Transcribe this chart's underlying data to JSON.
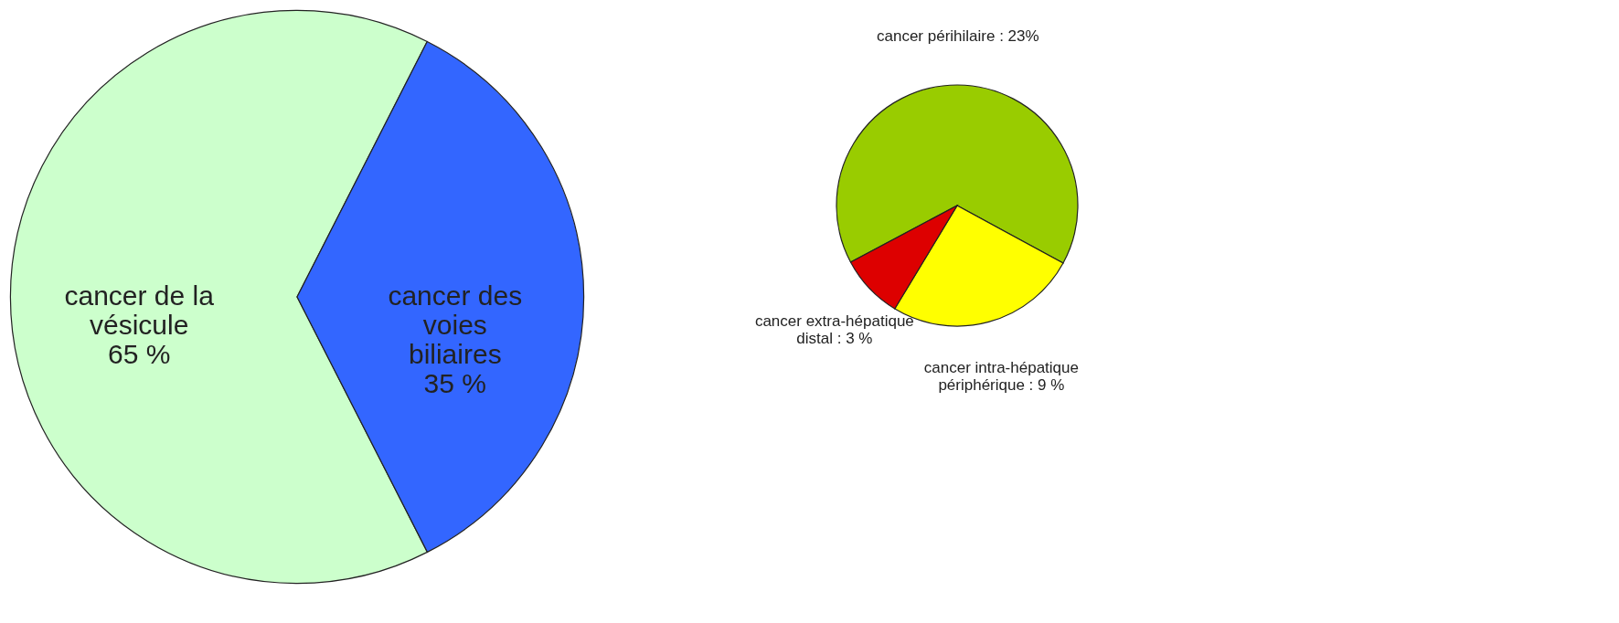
{
  "chart_data": [
    {
      "type": "pie",
      "categories": [
        "cancer de la vésicule",
        "cancer des voies biliaires"
      ],
      "values": [
        65,
        35
      ],
      "value_labels": [
        "65 %",
        "35 %"
      ],
      "colors": [
        "#ccffcc",
        "#3366ff"
      ]
    },
    {
      "type": "pie",
      "categories": [
        "cancer périhilaire",
        "cancer intra-hépatique périphérique",
        "cancer extra-hépatique distal"
      ],
      "values": [
        23,
        9,
        3
      ],
      "value_labels": [
        "23%",
        "9 %",
        "3 %"
      ],
      "colors": [
        "#99cc00",
        "#ffff00",
        "#dd0000"
      ]
    }
  ]
}
